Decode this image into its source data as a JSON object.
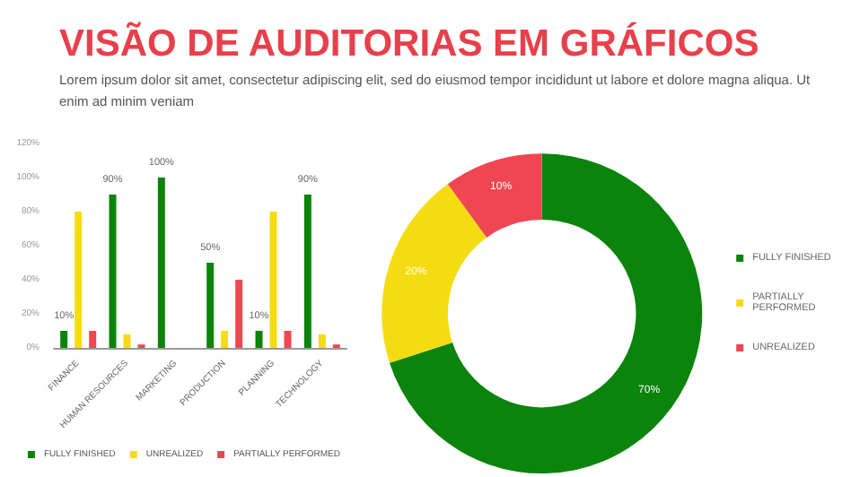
{
  "chart_data": [
    {
      "type": "bar",
      "title": "VISÃO DE AUDITORIAS EM GRÁFICOS",
      "subtitle": "Lorem ipsum dolor sit amet, consectetur adipiscing elit, sed do eiusmod tempor incididunt ut labore et dolore magna aliqua. Ut enim ad minim veniam",
      "categories": [
        "FINANCE",
        "HUMAN RESOURCES",
        "MARKETING",
        "PRODUCTION",
        "PLANNING",
        "TECHNOLOGY"
      ],
      "series": [
        {
          "name": "FULLY FINISHED",
          "color": "#0a840a",
          "values": [
            10,
            90,
            100,
            50,
            10,
            90
          ],
          "value_labels": [
            "10%",
            "90%",
            "100%",
            "50%",
            "10%",
            "90%"
          ]
        },
        {
          "name": "UNREALIZED",
          "color": "#f5dc12",
          "values": [
            80,
            8,
            0,
            10,
            80,
            8
          ]
        },
        {
          "name": "PARTIALLY PERFORMED",
          "color": "#f04652",
          "values": [
            10,
            2,
            0,
            40,
            10,
            2
          ]
        }
      ],
      "ylim": [
        0,
        120
      ],
      "yticks": [
        {
          "value": 0,
          "label": "0%"
        },
        {
          "value": 20,
          "label": "20%"
        },
        {
          "value": 40,
          "label": "40%"
        },
        {
          "value": 60,
          "label": "60%"
        },
        {
          "value": 80,
          "label": "80%"
        },
        {
          "value": 100,
          "label": "100%"
        },
        {
          "value": 120,
          "label": "120%"
        }
      ],
      "grid": false,
      "legend": "bottom"
    },
    {
      "type": "donut",
      "categories": [
        "FULLY FINISHED",
        "PARTIALLY PERFORMED",
        "UNREALIZED"
      ],
      "values": [
        70,
        20,
        10
      ],
      "colors": [
        "#0a840a",
        "#f5dc12",
        "#f04652"
      ],
      "value_labels": [
        "70%",
        "20%",
        "10%"
      ],
      "legend": "right"
    }
  ]
}
